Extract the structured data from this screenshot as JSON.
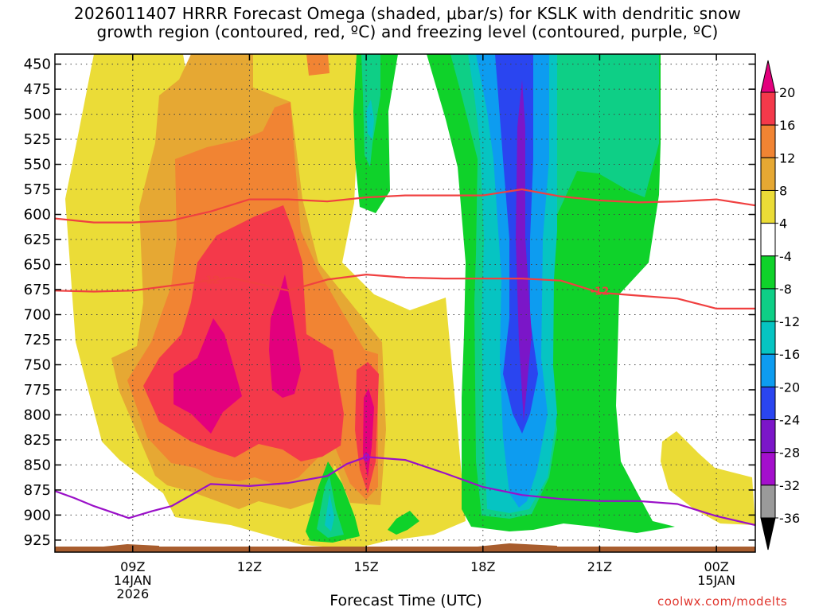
{
  "title": {
    "line1": "2026011407 HRRR Forecast Omega (shaded, μbar/s) for KSLK with dendritic snow",
    "line2": "growth region (contoured, red, ºC) and freezing level (contoured, purple, ºC)"
  },
  "xlabel": "Forecast Time (UTC)",
  "credit": "coolwx.com/modelts",
  "chart_data": {
    "type": "heatmap",
    "title": "2026011407 HRRR Forecast Omega (shaded, μbar/s) for KSLK with dendritic snow growth region (contoured, red, ºC) and freezing level (contoured, purple, ºC)",
    "xlabel": "Forecast Time (UTC)",
    "ylabel": "",
    "x_hours_range": [
      7,
      25
    ],
    "y_pressure_range_hpa": [
      440,
      937
    ],
    "y_ticks": [
      450,
      475,
      500,
      525,
      550,
      575,
      600,
      625,
      650,
      675,
      700,
      725,
      750,
      775,
      800,
      825,
      850,
      875,
      900,
      925
    ],
    "x_ticks": [
      {
        "hour": 9,
        "labels": [
          "09Z",
          "14JAN",
          "2026"
        ]
      },
      {
        "hour": 12,
        "labels": [
          "12Z"
        ]
      },
      {
        "hour": 15,
        "labels": [
          "15Z"
        ]
      },
      {
        "hour": 18,
        "labels": [
          "18Z"
        ]
      },
      {
        "hour": 21,
        "labels": [
          "21Z"
        ]
      },
      {
        "hour": 24,
        "labels": [
          "00Z",
          "15JAN"
        ]
      }
    ],
    "grid": true,
    "colorbar": {
      "labels": [
        "20",
        "16",
        "12",
        "8",
        "4",
        "-4",
        "-8",
        "-12",
        "-16",
        "-20",
        "-24",
        "-28",
        "-32",
        "-36"
      ],
      "bins": [
        {
          "range": [
            16,
            20
          ],
          "color": "#f4394a"
        },
        {
          "range": [
            12,
            16
          ],
          "color": "#f18433"
        },
        {
          "range": [
            8,
            12
          ],
          "color": "#e6a833"
        },
        {
          "range": [
            4,
            8
          ],
          "color": "#ebdc37"
        },
        {
          "range": [
            -4,
            4
          ],
          "color": "#ffffff"
        },
        {
          "range": [
            -8,
            -4
          ],
          "color": "#0fd22a"
        },
        {
          "range": [
            -12,
            -8
          ],
          "color": "#0ecf86"
        },
        {
          "range": [
            -16,
            -12
          ],
          "color": "#06c4c2"
        },
        {
          "range": [
            -20,
            -16
          ],
          "color": "#0d9cf0"
        },
        {
          "range": [
            -24,
            -20
          ],
          "color": "#2a45f0"
        },
        {
          "range": [
            -28,
            -24
          ],
          "color": "#7b16c8"
        },
        {
          "range": [
            -32,
            -28
          ],
          "color": "#a40fcc"
        },
        {
          "range": [
            -36,
            -32
          ],
          "color": "#9a9a9a"
        }
      ],
      "top_overflow_color": "#e3007d",
      "bottom_overflow_color": "#000000"
    },
    "contours": [
      {
        "name": "-12",
        "color": "#f04040",
        "x": [
          7,
          8,
          9,
          10.6,
          11.5,
          13,
          14,
          15,
          16,
          17,
          18,
          19,
          20,
          21,
          22,
          23,
          24,
          25
        ],
        "y": [
          676,
          677,
          676,
          668,
          663,
          676,
          665,
          660,
          663,
          664,
          664,
          664,
          666,
          678,
          681,
          684,
          694,
          694
        ]
      },
      {
        "name": "",
        "color": "#f04040",
        "x": [
          7,
          8,
          9,
          10,
          11,
          12,
          13,
          14,
          15,
          16,
          17,
          18,
          19,
          20,
          21,
          22,
          23,
          24,
          25
        ],
        "y": [
          604,
          608,
          608,
          606,
          597,
          585,
          585,
          587,
          583,
          581,
          581,
          581,
          575,
          582,
          586,
          588,
          587,
          585,
          591
        ]
      },
      {
        "name": "0",
        "color": "#9a10c8",
        "x": [
          7,
          7.5,
          8,
          8.9,
          9.5,
          10,
          11,
          12,
          13,
          14,
          14.5,
          15,
          16,
          17,
          18,
          19,
          20,
          21,
          22,
          23,
          24,
          25
        ],
        "y": [
          876,
          883,
          891,
          903,
          896,
          891,
          869,
          871,
          868,
          861,
          849,
          842,
          845,
          858,
          872,
          880,
          884,
          886,
          886,
          889,
          901,
          910
        ]
      }
    ],
    "shaded_regions": [
      {
        "value_bin": "4..8",
        "note": "broad positive omega 07Z-17Z below 450 hPa"
      },
      {
        "value_bin": ">20",
        "note": "core 10Z-13Z, 650-780 hPa"
      },
      {
        "value_bin": "-20..-24",
        "note": "core near 19Z, 460-770 hPa"
      }
    ]
  }
}
